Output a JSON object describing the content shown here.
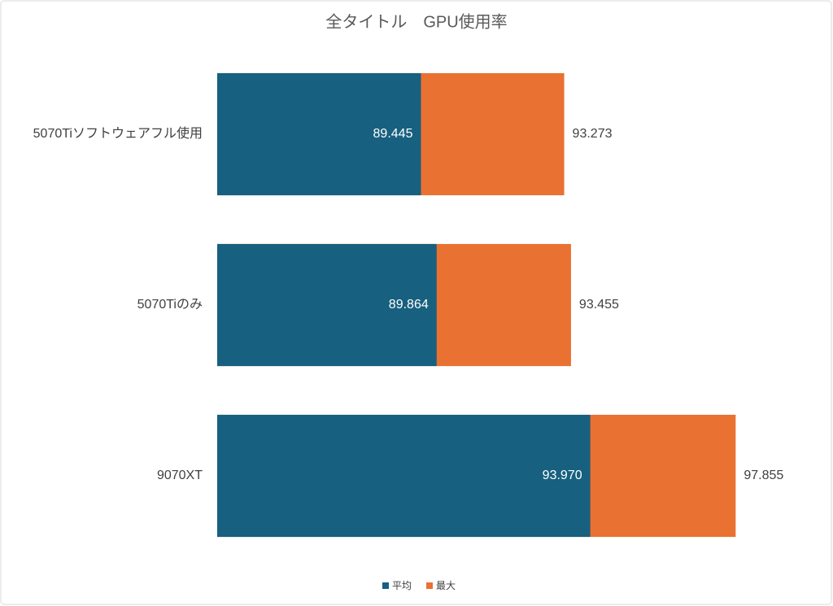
{
  "chart_data": {
    "type": "overlap-bar-horizontal",
    "title": "全タイトル　GPU使用率",
    "categories": [
      "5070Tiソフトウェアフル使用",
      "5070Tiのみ",
      "9070XT"
    ],
    "series": [
      {
        "name": "平均",
        "color": "#17607f",
        "values": [
          89.445,
          89.864,
          93.97
        ],
        "value_labels": [
          "89.445",
          "89.864",
          "93.970"
        ]
      },
      {
        "name": "最大",
        "color": "#e97132",
        "values": [
          93.273,
          93.455,
          97.855
        ],
        "value_labels": [
          "93.273",
          "93.455",
          "97.855"
        ]
      }
    ],
    "xlim": [
      84,
      100
    ],
    "legend": "bottom"
  }
}
